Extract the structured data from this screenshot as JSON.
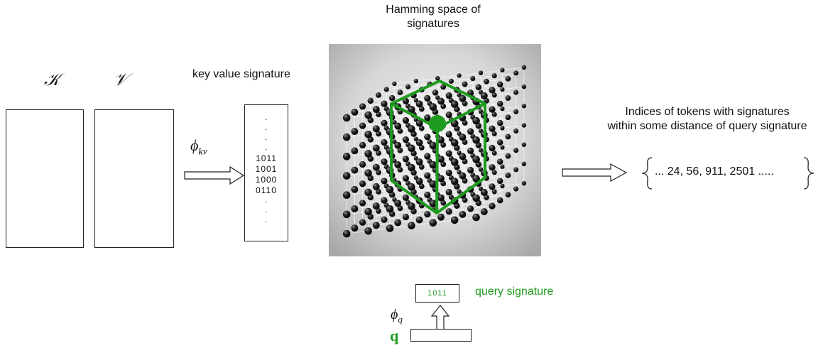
{
  "hamming_title": [
    "Hamming space of",
    "signatures"
  ],
  "key_symbol": "𝒦",
  "value_symbol": "𝒱",
  "kv_signature_label": "key value signature",
  "phi_kv": {
    "base": "ϕ",
    "sub": "kv"
  },
  "kv_signature_rows": [
    "1011",
    "1001",
    "1000",
    "0110"
  ],
  "indices_label": [
    "Indices of tokens with signatures",
    "within some distance of query signature"
  ],
  "indices_values": "... 24, 56, 911, 2501 .....",
  "query_signature_bits": "1011",
  "query_signature_label": "query signature",
  "phi_q": {
    "base": "ϕ",
    "sub": "q"
  },
  "query_symbol": "q",
  "colors": {
    "accent": "#1e9a1e",
    "line": "#222222",
    "background": "#ffffff"
  },
  "icons": [
    "arrow-right-outline",
    "arrow-up-outline",
    "curly-brace-left",
    "curly-brace-right",
    "lattice-cube"
  ]
}
